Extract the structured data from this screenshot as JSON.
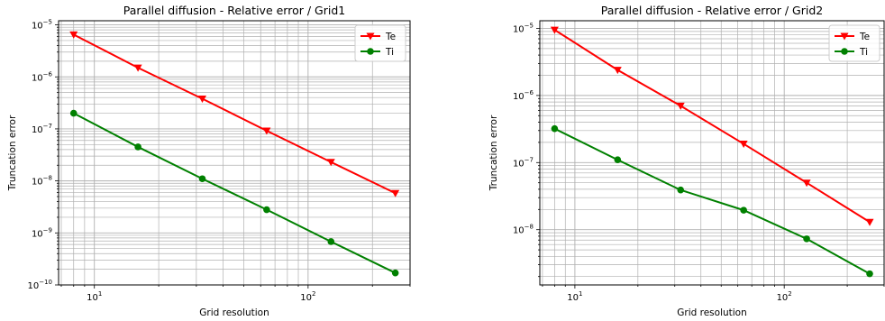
{
  "chart_data": [
    {
      "type": "line",
      "title": "Parallel diffusion - Relative error / Grid1",
      "xlabel": "Grid resolution",
      "ylabel": "Truncation error",
      "xscale": "log",
      "yscale": "log",
      "xlim": [
        6.8,
        300
      ],
      "ylim": [
        1e-10,
        1.2e-05
      ],
      "grid": true,
      "legend": "top-right",
      "x": [
        8,
        16,
        32,
        64,
        128,
        256
      ],
      "x_ticks": [
        {
          "value": 10,
          "base": "10",
          "exp": "1"
        },
        {
          "value": 100,
          "base": "10",
          "exp": "2"
        }
      ],
      "y_ticks": [
        {
          "value": 1e-10,
          "base": "10",
          "exp": "−10"
        },
        {
          "value": 1e-09,
          "base": "10",
          "exp": "−9"
        },
        {
          "value": 1e-08,
          "base": "10",
          "exp": "−8"
        },
        {
          "value": 1e-07,
          "base": "10",
          "exp": "−7"
        },
        {
          "value": 1e-06,
          "base": "10",
          "exp": "−6"
        },
        {
          "value": 1e-05,
          "base": "10",
          "exp": "−5"
        }
      ],
      "series": [
        {
          "name": "Te",
          "color": "#ff0000",
          "marker": "triangle-down",
          "values": [
            6.5e-06,
            1.5e-06,
            3.8e-07,
            9.2e-08,
            2.3e-08,
            5.8e-09
          ]
        },
        {
          "name": "Ti",
          "color": "#008000",
          "marker": "circle",
          "values": [
            2e-07,
            4.5e-08,
            1.1e-08,
            2.8e-09,
            6.8e-10,
            1.7e-10
          ]
        }
      ]
    },
    {
      "type": "line",
      "title": "Parallel diffusion - Relative error / Grid2",
      "xlabel": "Grid resolution",
      "ylabel": "Truncation error",
      "xscale": "log",
      "yscale": "log",
      "xlim": [
        6.8,
        300
      ],
      "ylim": [
        1.5e-09,
        1.3e-05
      ],
      "grid": true,
      "legend": "top-right",
      "x": [
        8,
        16,
        32,
        64,
        128,
        256
      ],
      "x_ticks": [
        {
          "value": 10,
          "base": "10",
          "exp": "1"
        },
        {
          "value": 100,
          "base": "10",
          "exp": "2"
        }
      ],
      "y_ticks": [
        {
          "value": 1e-08,
          "base": "10",
          "exp": "−8"
        },
        {
          "value": 1e-07,
          "base": "10",
          "exp": "−7"
        },
        {
          "value": 1e-06,
          "base": "10",
          "exp": "−6"
        },
        {
          "value": 1e-05,
          "base": "10",
          "exp": "−5"
        }
      ],
      "series": [
        {
          "name": "Te",
          "color": "#ff0000",
          "marker": "triangle-down",
          "values": [
            9.5e-06,
            2.4e-06,
            7e-07,
            1.9e-07,
            5e-08,
            1.3e-08
          ]
        },
        {
          "name": "Ti",
          "color": "#008000",
          "marker": "circle",
          "values": [
            3.2e-07,
            1.1e-07,
            3.9e-08,
            1.95e-08,
            7.3e-09,
            2.2e-09
          ]
        }
      ]
    }
  ]
}
